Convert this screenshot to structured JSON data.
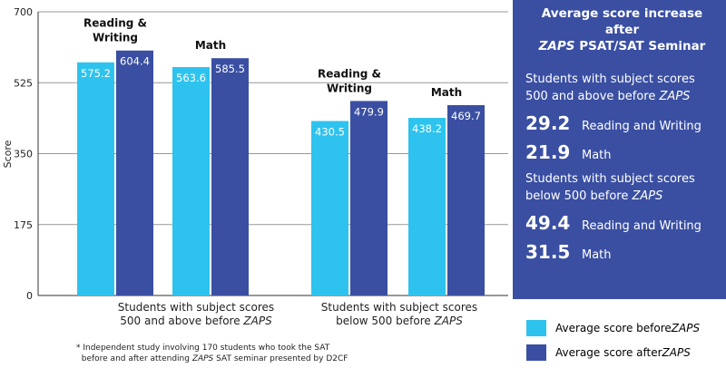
{
  "chart_data": {
    "type": "bar",
    "ylabel": "Score",
    "ylim": [
      0,
      700
    ],
    "yticks": [
      0,
      175,
      350,
      525,
      700
    ],
    "grid": true,
    "colors": {
      "before": "#2ec3ee",
      "after": "#3a4fa2"
    },
    "groups": [
      {
        "label": "Students with subject scores 500 and above before ZAPS",
        "label_l1": "Students with subject scores",
        "label_l2": "500 and above before ",
        "label_em": "ZAPS",
        "subjects": [
          {
            "name": "Reading & Writing",
            "before": 575.2,
            "after": 604.4
          },
          {
            "name": "Math",
            "before": 563.6,
            "after": 585.5
          }
        ]
      },
      {
        "label": "Students with subject scores below 500 before ZAPS",
        "label_l1": "Students with subject scores",
        "label_l2": "below 500 before ",
        "label_em": "ZAPS",
        "subjects": [
          {
            "name": "Reading & Writing",
            "before": 430.5,
            "after": 479.9
          },
          {
            "name": "Math",
            "before": 438.2,
            "after": 469.7
          }
        ]
      }
    ],
    "legend": {
      "before": "Average score before ZAPS",
      "after": "Average score after ZAPS",
      "placement": "bottom-right"
    }
  },
  "panel": {
    "title1": "Average score increase after",
    "title2_em": "ZAPS",
    "title2": " PSAT/SAT Seminar",
    "sections": [
      {
        "h1": "Students with subject scores",
        "h2": "500 and above before ",
        "em": "ZAPS",
        "stats": [
          {
            "value": "29.2",
            "label": "Reading and Writing"
          },
          {
            "value": "21.9",
            "label": "Math"
          }
        ]
      },
      {
        "h1": "Students with subject scores",
        "h2": "below 500 before ",
        "em": "ZAPS",
        "stats": [
          {
            "value": "49.4",
            "label": "Reading and Writing"
          },
          {
            "value": "31.5",
            "label": "Math"
          }
        ]
      }
    ]
  },
  "legend": {
    "before": "Average score before ",
    "after": "Average score after ",
    "em": "ZAPS"
  },
  "footnote": {
    "l1": "* Independent study involving 170 students who took the SAT",
    "l2a": "before and after attending ",
    "em": "ZAPS",
    "l2b": " SAT seminar presented by D2CF"
  }
}
